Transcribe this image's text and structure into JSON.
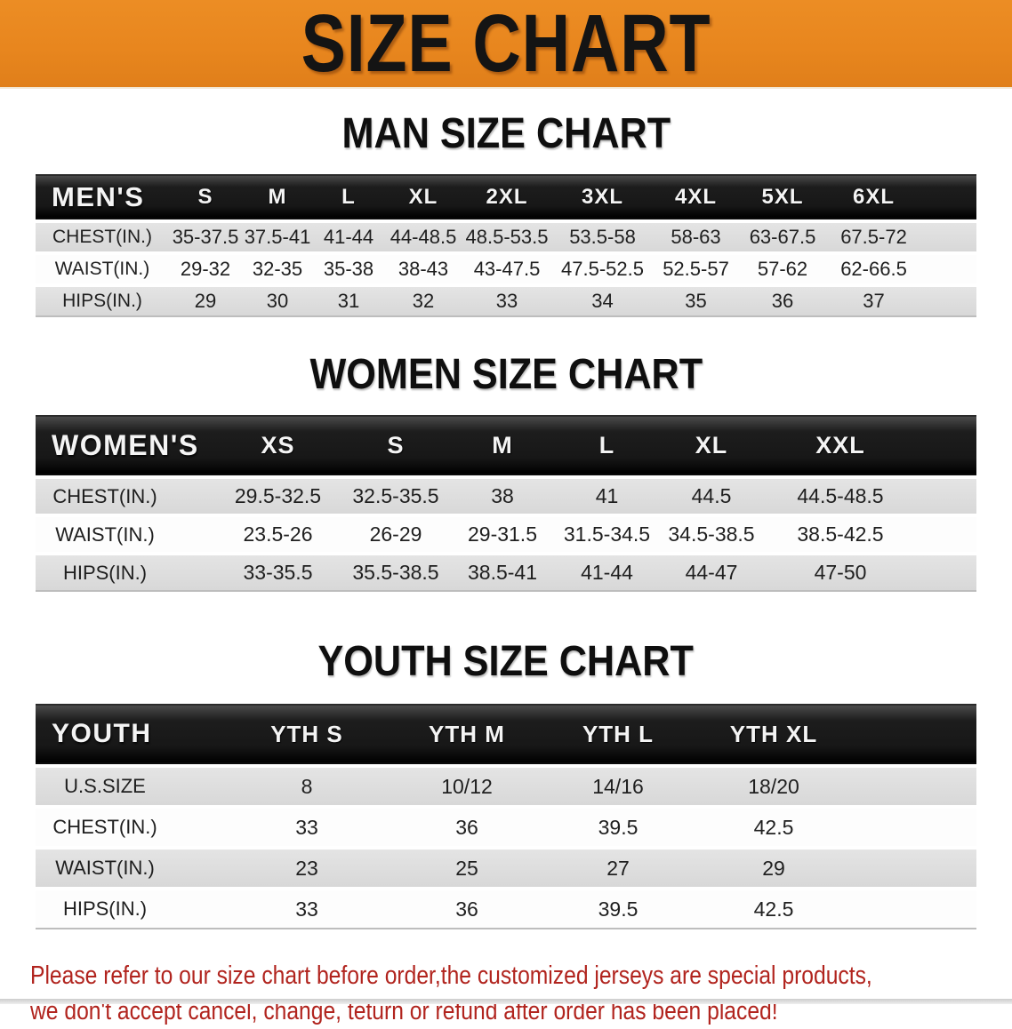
{
  "banner": {
    "title": "SIZE CHART"
  },
  "colors": {
    "banner_bg": "#e8861e",
    "header_bar": "#1a1a1a",
    "row_shaded": "#dcdcdc",
    "row_plain": "#fdfdfd",
    "disclaimer_red": "#b1241e"
  },
  "sections": [
    {
      "id": "men",
      "title": "MAN SIZE CHART",
      "corner": "MEN'S",
      "columns": [
        "S",
        "M",
        "L",
        "XL",
        "2XL",
        "3XL",
        "4XL",
        "5XL",
        "6XL"
      ],
      "rows": [
        {
          "label": "CHEST(IN.)",
          "values": [
            "35-37.5",
            "37.5-41",
            "41-44",
            "44-48.5",
            "48.5-53.5",
            "53.5-58",
            "58-63",
            "63-67.5",
            "67.5-72"
          ]
        },
        {
          "label": "WAIST(IN.)",
          "values": [
            "29-32",
            "32-35",
            "35-38",
            "38-43",
            "43-47.5",
            "47.5-52.5",
            "52.5-57",
            "57-62",
            "62-66.5"
          ]
        },
        {
          "label": "HIPS(IN.)",
          "values": [
            "29",
            "30",
            "31",
            "32",
            "33",
            "34",
            "35",
            "36",
            "37"
          ]
        }
      ]
    },
    {
      "id": "women",
      "title": "WOMEN SIZE CHART",
      "corner": "WOMEN'S",
      "columns": [
        "XS",
        "S",
        "M",
        "L",
        "XL",
        "XXL"
      ],
      "rows": [
        {
          "label": "CHEST(IN.)",
          "values": [
            "29.5-32.5",
            "32.5-35.5",
            "38",
            "41",
            "44.5",
            "44.5-48.5"
          ]
        },
        {
          "label": "WAIST(IN.)",
          "values": [
            "23.5-26",
            "26-29",
            "29-31.5",
            "31.5-34.5",
            "34.5-38.5",
            "38.5-42.5"
          ]
        },
        {
          "label": "HIPS(IN.)",
          "values": [
            "33-35.5",
            "35.5-38.5",
            "38.5-41",
            "41-44",
            "44-47",
            "47-50"
          ]
        }
      ]
    },
    {
      "id": "youth",
      "title": "YOUTH SIZE CHART",
      "corner": "YOUTH",
      "columns": [
        "YTH S",
        "YTH M",
        "YTH L",
        "YTH XL"
      ],
      "rows": [
        {
          "label": "U.S.SIZE",
          "values": [
            "8",
            "10/12",
            "14/16",
            "18/20"
          ]
        },
        {
          "label": "CHEST(IN.)",
          "values": [
            "33",
            "36",
            "39.5",
            "42.5"
          ]
        },
        {
          "label": "WAIST(IN.)",
          "values": [
            "23",
            "25",
            "27",
            "29"
          ]
        },
        {
          "label": "HIPS(IN.)",
          "values": [
            "33",
            "36",
            "39.5",
            "42.5"
          ]
        }
      ]
    }
  ],
  "disclaimer": {
    "line1": "Please refer to our size chart before order,the customized jerseys are special products,",
    "line2": "we don't accept cancel, change, teturn or refund after order has been placed!"
  }
}
